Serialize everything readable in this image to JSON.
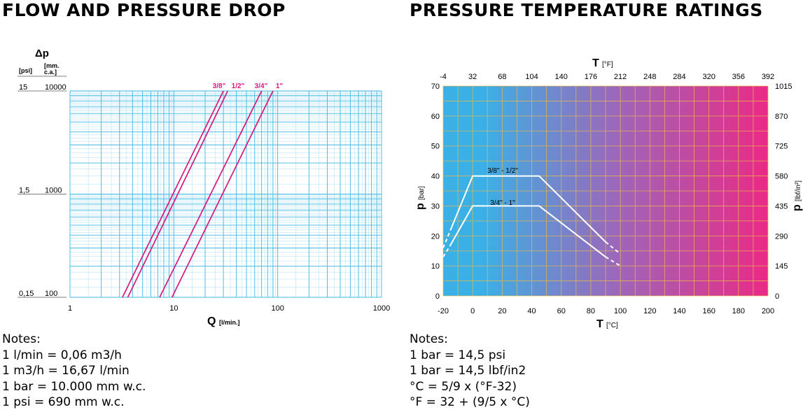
{
  "colors": {
    "grid": "#3fb8e4",
    "curve": "#d6197e",
    "axis_text": "#000000",
    "temp_grid": "#e9b84a",
    "gradient_start": "#3ab0e6",
    "gradient_end": "#ea2a85"
  },
  "left_panel": {
    "title": "FLOW AND PRESSURE DROP",
    "notes": [
      "Notes:",
      "1 l/min = 0,06 m3/h",
      "1 m3/h = 16,67 l/min",
      "1 bar = 10.000 mm w.c.",
      "1 psi = 690 mm w.c."
    ]
  },
  "right_panel": {
    "title": "PRESSURE TEMPERATURE RATINGS",
    "notes": [
      "Notes:",
      "1 bar = 14,5 psi",
      "1 bar = 14,5 lbf/in2",
      "°C = 5/9 x (°F-32)",
      "°F = 32 + (9/5 x °C)"
    ]
  },
  "chart_data": [
    {
      "type": "line",
      "x_scale": "log",
      "y_scale": "log",
      "xlim": [
        1,
        1000
      ],
      "ylim_mm": [
        100,
        10000
      ],
      "x_ticks": [
        "1",
        "10",
        "100",
        "1000"
      ],
      "y_ticks_psi": [
        "0,15",
        "1,5",
        "15"
      ],
      "y_ticks_mm": [
        "100",
        "1000",
        "10000"
      ],
      "ylabel_symbol": "Δp",
      "ylabel_unit_left": "[psi]",
      "ylabel_unit_right_1": "[mm.",
      "ylabel_unit_right_2": "c.a.]",
      "xlabel_symbol": "Q",
      "xlabel_unit": "[l/min.]",
      "grid": true,
      "series": [
        {
          "name": "3/8\"",
          "x": [
            3.2,
            30
          ],
          "y_mm": [
            100,
            10000
          ]
        },
        {
          "name": "1/2\"",
          "x": [
            3.6,
            33
          ],
          "y_mm": [
            100,
            10000
          ]
        },
        {
          "name": "3/4\"",
          "x": [
            7.3,
            70
          ],
          "y_mm": [
            100,
            10000
          ]
        },
        {
          "name": "1\"",
          "x": [
            9.6,
            90
          ],
          "y_mm": [
            100,
            10000
          ]
        }
      ]
    },
    {
      "type": "line",
      "xlim": [
        -20,
        200
      ],
      "ylim": [
        0,
        70
      ],
      "x_ticks": [
        -20,
        0,
        20,
        40,
        60,
        80,
        100,
        120,
        140,
        160,
        180,
        200
      ],
      "y_ticks": [
        0,
        10,
        20,
        30,
        40,
        50,
        60,
        70
      ],
      "top_ticks_f": [
        "-4",
        "32",
        "68",
        "104",
        "140",
        "176",
        "212",
        "248",
        "284",
        "320",
        "356",
        "392"
      ],
      "right_ticks_psi": [
        "0",
        "145",
        "290",
        "435",
        "580",
        "725",
        "870",
        "1015"
      ],
      "xlabel_symbol": "T",
      "xlabel_unit": "[°C]",
      "top_label_symbol": "T",
      "top_label_unit": "[°F]",
      "ylabel_symbol": "p",
      "ylabel_unit": "[bar]",
      "right_label_symbol": "p",
      "right_label_unit": "[lbf/in²]",
      "grid": true,
      "series": [
        {
          "name": "3/8\" - 1/2\"",
          "x": [
            -15,
            0,
            45,
            90
          ],
          "y": [
            22,
            40,
            40,
            18
          ],
          "dashed_x": [
            [
              -20,
              -15
            ],
            [
              90,
              100
            ]
          ],
          "dashed_y": [
            [
              16,
              22
            ],
            [
              18,
              14
            ]
          ]
        },
        {
          "name": "3/4\" - 1\"",
          "x": [
            -15,
            0,
            45,
            90
          ],
          "y": [
            17,
            30,
            30,
            13
          ],
          "dashed_x": [
            [
              -20,
              -15
            ],
            [
              90,
              100
            ]
          ],
          "dashed_y": [
            [
              13,
              17
            ],
            [
              13,
              10
            ]
          ]
        }
      ]
    }
  ]
}
